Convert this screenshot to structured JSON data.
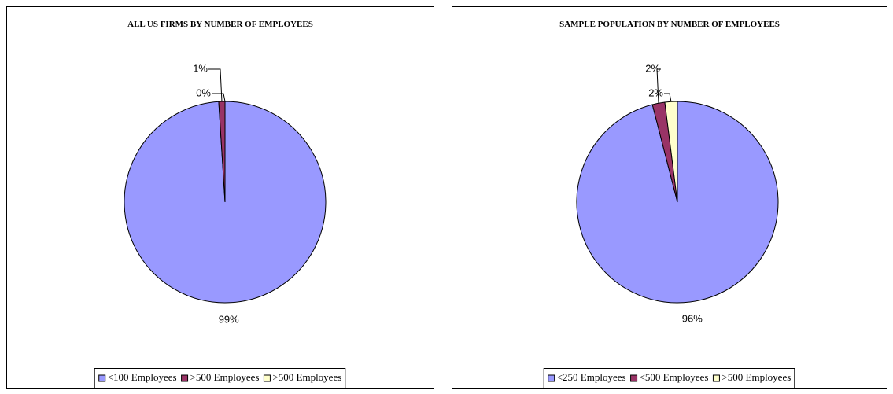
{
  "chart_data": [
    {
      "type": "pie",
      "title": "ALL US FIRMS BY NUMBER OF EMPLOYEES",
      "categories": [
        "<100 Employees",
        ">500 Employees",
        ">500 Employees"
      ],
      "values": [
        99,
        1,
        0
      ],
      "value_labels": [
        "99%",
        "1%",
        "0%"
      ],
      "colors": [
        "#9999ff",
        "#993366",
        "#ffffcc"
      ]
    },
    {
      "type": "pie",
      "title": "SAMPLE POPULATION BY NUMBER OF EMPLOYEES",
      "categories": [
        "<250 Employees",
        "<500 Employees",
        ">500 Employees"
      ],
      "values": [
        96,
        2,
        2
      ],
      "value_labels": [
        "96%",
        "2%",
        "2%"
      ],
      "colors": [
        "#9999ff",
        "#993366",
        "#ffffcc"
      ]
    }
  ]
}
